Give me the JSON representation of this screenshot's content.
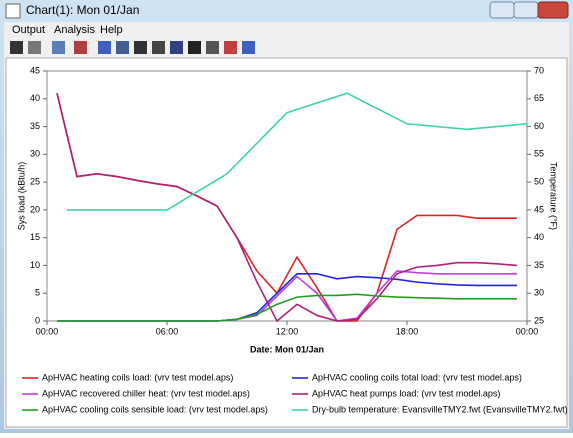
{
  "window": {
    "title": "Chart(1): Mon 01/Jan",
    "menu": [
      "Output",
      "Analysis",
      "Help"
    ]
  },
  "chart_data": {
    "type": "line",
    "xlabel": "Date: Mon 01/Jan",
    "ylabel": "Sys load (kBtu/h)",
    "y2label": "Temperature (°F)",
    "x": [
      0.5,
      1.5,
      2.5,
      3.5,
      4.5,
      5.5,
      6.5,
      7.5,
      8.5,
      9.5,
      10.5,
      11.5,
      12.5,
      13.5,
      14.5,
      15.5,
      16.5,
      17.5,
      18.5,
      19.5,
      20.5,
      21.5,
      22.5,
      23.5
    ],
    "xlim": [
      0,
      24
    ],
    "xticks": [
      {
        "value": 0,
        "label": "00:00"
      },
      {
        "value": 6,
        "label": "06:00"
      },
      {
        "value": 12,
        "label": "12:00"
      },
      {
        "value": 18,
        "label": "18:00"
      },
      {
        "value": 24,
        "label": "00:00"
      }
    ],
    "ylim": [
      0,
      45
    ],
    "yticks": [
      0,
      5,
      10,
      15,
      20,
      25,
      30,
      35,
      40,
      45
    ],
    "y2lim": [
      25,
      70
    ],
    "y2ticks": [
      25,
      30,
      35,
      40,
      45,
      50,
      55,
      60,
      65,
      70
    ],
    "series": [
      {
        "name": "ApHVAC heating coils load:  (vrv test model.aps)",
        "color": "#e02424",
        "values": [
          41,
          26,
          26.5,
          26,
          25.3,
          24.7,
          24.2,
          22.5,
          20.7,
          15,
          9,
          5,
          11.5,
          6,
          0,
          0,
          5,
          16.5,
          19,
          19,
          19,
          18.5,
          18.5,
          18.5
        ]
      },
      {
        "name": "ApHVAC cooling coils total load:  (vrv test model.aps)",
        "color": "#2424e0",
        "values": [
          0,
          0,
          0,
          0,
          0,
          0,
          0,
          0,
          0,
          0.3,
          1.5,
          5,
          8.5,
          8.5,
          7.6,
          8,
          7.8,
          7.5,
          7,
          6.7,
          6.5,
          6.4,
          6.4,
          6.4
        ]
      },
      {
        "name": "ApHVAC recovered chiller heat:  (vrv test model.aps)",
        "color": "#c040d8",
        "values": [
          0,
          0,
          0,
          0,
          0,
          0,
          0,
          0,
          0,
          0.3,
          1,
          4.5,
          8,
          5,
          0,
          0.5,
          5,
          9,
          8.7,
          8.5,
          8.5,
          8.5,
          8.5,
          8.5
        ]
      },
      {
        "name": "ApHVAC heat pumps load:  (vrv test model.aps)",
        "color": "#b0207a",
        "values": [
          41,
          26,
          26.5,
          26,
          25.3,
          24.7,
          24.2,
          22.5,
          20.7,
          15,
          7,
          0,
          3,
          1,
          0,
          0.3,
          4,
          8.5,
          9.7,
          10,
          10.5,
          10.5,
          10.3,
          10
        ]
      },
      {
        "name": "ApHVAC cooling coils sensible load:  (vrv test model.aps)",
        "color": "#20a020",
        "values": [
          0,
          0,
          0,
          0,
          0,
          0,
          0,
          0,
          0,
          0.3,
          1.2,
          3,
          4.3,
          4.6,
          4.6,
          4.8,
          4.5,
          4.3,
          4.2,
          4.1,
          4,
          4,
          4,
          4
        ]
      },
      {
        "name": "Dry-bulb temperature: EvansvilleTMY2.fwt (EvansvilleTMY2.fwt)",
        "color": "#3cd4a0",
        "axis": "y2",
        "x": [
          1,
          6,
          9,
          12,
          15,
          18,
          21,
          24
        ],
        "values": [
          45,
          45,
          51.5,
          62.5,
          66,
          60.5,
          59.5,
          60.5
        ]
      }
    ]
  }
}
